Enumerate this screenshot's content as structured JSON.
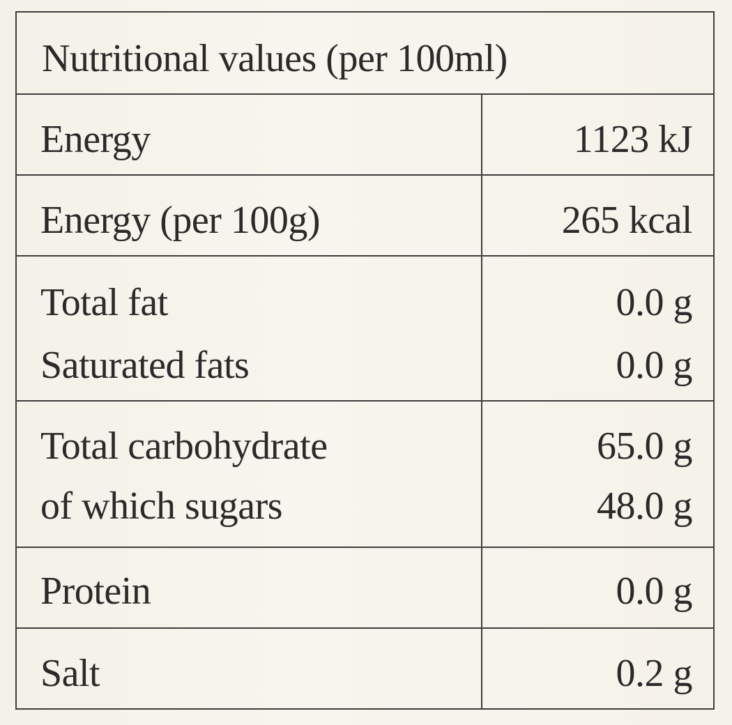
{
  "title": "Nutritional values (per 100ml)",
  "rows": [
    {
      "label": "Energy",
      "value": "1123 kJ"
    },
    {
      "label": "Energy (per 100g)",
      "value": "265 kcal"
    },
    {
      "label": "Total fat",
      "value": "0.0 g"
    },
    {
      "label": "Saturated fats",
      "value": "0.0 g"
    },
    {
      "label": "Total carbohydrate",
      "value": "65.0 g"
    },
    {
      "label": "of which sugars",
      "value": "48.0 g"
    },
    {
      "label": "Protein",
      "value": "0.0 g"
    },
    {
      "label": "Salt",
      "value": "0.2 g"
    }
  ]
}
